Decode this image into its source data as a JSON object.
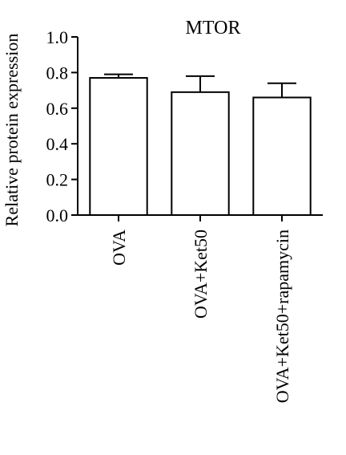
{
  "chart_data": {
    "type": "bar",
    "title": "MTOR",
    "ylabel": "Relative protein expression",
    "xlabel": "",
    "ylim": [
      0,
      1.0
    ],
    "yticks": [
      "0.0",
      "0.2",
      "0.4",
      "0.6",
      "0.8",
      "1.0"
    ],
    "categories": [
      "OVA",
      "OVA+Ket50",
      "OVA+Ket50+rapamycin"
    ],
    "values": [
      0.77,
      0.69,
      0.66
    ],
    "errors": [
      0.02,
      0.09,
      0.08
    ],
    "grid": false,
    "bar_fill": "#ffffff",
    "bar_stroke": "#000000"
  }
}
